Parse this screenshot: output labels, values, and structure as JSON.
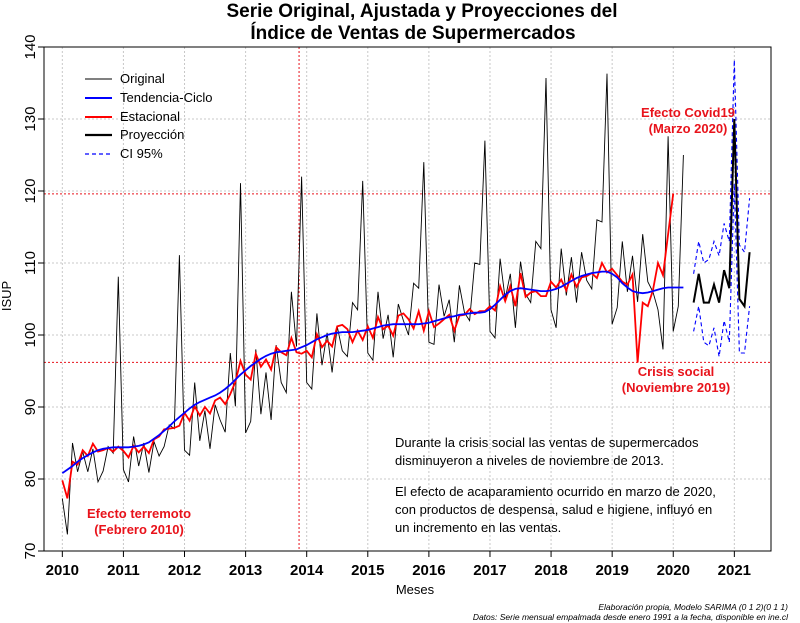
{
  "chart_data": {
    "type": "line",
    "title_line1": "Serie Original, Ajustada y Proyecciones del",
    "title_line2": "Índice de Ventas de Supermercados",
    "xlabel": "Meses",
    "ylabel": "ISUP",
    "xlim": [
      2009.7,
      2021.6
    ],
    "ylim": [
      70,
      140
    ],
    "x_ticks": [
      2010,
      2011,
      2012,
      2013,
      2014,
      2015,
      2016,
      2017,
      2018,
      2019,
      2020,
      2021
    ],
    "y_ticks": [
      70,
      80,
      90,
      100,
      110,
      120,
      130,
      140
    ],
    "grid": true,
    "legend_position": "top-left",
    "legend": [
      {
        "label": "Original",
        "color": "#000000",
        "style": "solid-thin"
      },
      {
        "label": "Tendencia-Ciclo",
        "color": "#0000ff",
        "style": "solid"
      },
      {
        "label": "Estacional",
        "color": "#ff0000",
        "style": "solid"
      },
      {
        "label": "Proyección",
        "color": "#000000",
        "style": "solid-thick"
      },
      {
        "label": "CI 95%",
        "color": "#0000ff",
        "style": "dashed"
      }
    ],
    "reference_lines": {
      "vertical_x": 2013.875,
      "horizontal_y": [
        119.6,
        96.2
      ],
      "color": "#e8131b"
    },
    "series": [
      {
        "name": "Original",
        "color": "#000000",
        "x_start": 2010.0,
        "x_step": 0.08333,
        "values": [
          77.3,
          72.3,
          85.0,
          81.0,
          83.8,
          81.0,
          84.2,
          79.6,
          81.1,
          84.5,
          83.6,
          108.1,
          81.3,
          79.6,
          85.9,
          81.8,
          85.0,
          80.9,
          85.2,
          83.2,
          84.5,
          87.5,
          87.0,
          111.1,
          84.0,
          83.3,
          93.4,
          85.3,
          89.5,
          84.2,
          90.3,
          88.2,
          86.5,
          97.5,
          90.1,
          121.1,
          86.4,
          88.0,
          98.0,
          89.0,
          94.8,
          88.2,
          98.6,
          93.4,
          92.0,
          106.0,
          98.4,
          122.0,
          93.4,
          92.5,
          103.0,
          95.8,
          100.3,
          94.8,
          101.2,
          97.8,
          97.0,
          104.5,
          103.5,
          121.4,
          97.5,
          96.5,
          106.0,
          99.5,
          102.8,
          96.9,
          104.3,
          102.0,
          100.0,
          107.2,
          106.5,
          124.0,
          99.0,
          98.7,
          107.0,
          102.6,
          104.9,
          99.0,
          106.9,
          103.1,
          102.0,
          110.0,
          109.8,
          127.0,
          100.5,
          99.6,
          110.6,
          105.0,
          108.5,
          101.0,
          110.2,
          105.7,
          104.5,
          113.0,
          112.0,
          135.7,
          103.5,
          101.0,
          112.0,
          105.5,
          110.8,
          104.5,
          111.5,
          107.6,
          106.4,
          116.0,
          115.7,
          136.3,
          101.5,
          103.8,
          113.0,
          106.0,
          111.0,
          104.6,
          114.0,
          107.4,
          106.0,
          103.5,
          98.0,
          127.6,
          100.5,
          104.0,
          125.0
        ],
        "trend": [
          80.8,
          81.3,
          81.8,
          82.4,
          82.9,
          83.3,
          83.7,
          84.0,
          84.2,
          84.3,
          84.4,
          84.4,
          84.4,
          84.4,
          84.5,
          84.6,
          84.8,
          85.1,
          85.6,
          86.1,
          86.7,
          87.3,
          88.0,
          88.6,
          89.2,
          89.8,
          90.3,
          90.7,
          91.0,
          91.3,
          91.6,
          92.0,
          92.5,
          93.1,
          93.8,
          94.5,
          95.1,
          95.7,
          96.2,
          96.7,
          97.1,
          97.4,
          97.6,
          97.7,
          97.8,
          97.9,
          98.0,
          98.3,
          98.6,
          99.0,
          99.4,
          99.7,
          100.0,
          100.2,
          100.3,
          100.4,
          100.4,
          100.4,
          100.5,
          100.6,
          100.7,
          100.9,
          101.1,
          101.3,
          101.4,
          101.5,
          101.5,
          101.5,
          101.5,
          101.5,
          101.5,
          101.6,
          101.7,
          101.9,
          102.1,
          102.3,
          102.5,
          102.6,
          102.8,
          102.9,
          103.0,
          103.1,
          103.1,
          103.2,
          103.6,
          104.2,
          104.9,
          105.6,
          106.1,
          106.4,
          106.5,
          106.4,
          106.3,
          106.2,
          106.1,
          106.1,
          106.2,
          106.4,
          106.7,
          107.1,
          107.5,
          107.9,
          108.2,
          108.4,
          108.6,
          108.7,
          108.8,
          108.8,
          108.5,
          108.0,
          107.2,
          106.6,
          106.1,
          105.9,
          105.8,
          105.9,
          106.1,
          106.3,
          106.5,
          106.6,
          106.6,
          106.6,
          106.6
        ],
        "seasonal_adj": [
          79.8,
          77.3,
          82.4,
          82.0,
          84.0,
          83.2,
          84.9,
          83.8,
          84.0,
          84.3,
          83.8,
          84.5,
          83.9,
          83.0,
          84.6,
          83.7,
          84.5,
          83.6,
          85.5,
          85.9,
          86.9,
          87.0,
          87.1,
          87.4,
          89.2,
          88.1,
          90.1,
          88.8,
          90.0,
          89.1,
          90.9,
          91.3,
          90.4,
          91.8,
          93.5,
          96.4,
          94.5,
          93.8,
          97.4,
          95.6,
          96.6,
          95.2,
          98.3,
          97.6,
          97.2,
          99.6,
          97.6,
          97.4,
          97.8,
          96.9,
          100.1,
          98.3,
          99.2,
          98.4,
          101.2,
          101.4,
          100.8,
          99.0,
          100.6,
          99.3,
          101.2,
          99.6,
          102.5,
          100.8,
          101.3,
          99.9,
          102.7,
          103.0,
          102.2,
          100.9,
          103.3,
          100.6,
          103.3,
          101.1,
          101.6,
          102.2,
          102.8,
          100.6,
          102.7,
          102.8,
          103.6,
          102.9,
          103.3,
          103.3,
          104.0,
          103.4,
          106.8,
          104.7,
          106.8,
          104.0,
          108.6,
          105.3,
          105.9,
          106.1,
          105.4,
          105.4,
          107.4,
          106.6,
          107.7,
          106.2,
          108.4,
          106.7,
          108.0,
          108.2,
          108.6,
          107.9,
          110.0,
          108.7,
          109.2,
          108.3,
          107.4,
          107.0,
          108.4,
          96.2,
          104.5,
          104.0,
          106.2,
          110.0,
          108.3,
          114.0,
          119.6
        ]
      },
      {
        "name": "Proyección",
        "color": "#000000",
        "x": [
          2020.333,
          2020.417,
          2020.5,
          2020.583,
          2020.667,
          2020.75,
          2020.833,
          2020.917,
          2021.0,
          2021.083,
          2021.167,
          2021.25
        ],
        "values": [
          104.5,
          108.5,
          104.5,
          104.5,
          107.0,
          104.5,
          109.0,
          106.5,
          130.0,
          105.0,
          104.0,
          111.5
        ],
        "ci_upper": [
          108.5,
          113.0,
          110.0,
          110.5,
          113.0,
          111.0,
          115.5,
          113.0,
          138.2,
          112.5,
          111.5,
          119.0
        ],
        "ci_lower": [
          100.5,
          104.0,
          99.0,
          98.5,
          101.0,
          97.0,
          102.0,
          99.0,
          121.0,
          97.5,
          97.5,
          104.0
        ]
      }
    ],
    "annotations": [
      {
        "text_line1": "Efecto Covid19",
        "text_line2": "(Marzo 2020)"
      },
      {
        "text_line1": "Crisis social",
        "text_line2": "(Noviembre 2019)"
      },
      {
        "text_line1": "Efecto terremoto",
        "text_line2": "(Febrero 2010)"
      },
      {
        "text_line1": "Durante la crisis social las ventas de supermercados",
        "text_line2": "disminuyeron a niveles de noviembre de 2013."
      },
      {
        "text_line1": "El efecto de acaparamiento ocurrido en marzo de 2020,",
        "text_line2": "con productos de despensa, salud e higiene, influyó en",
        "text_line3": "un incremento en las ventas."
      }
    ],
    "footnote_line1": "Elaboración propia, Modelo SARIMA (0 1 2)(0 1 1)",
    "footnote_line2": "Datos: Serie mensual empalmada desde enero 1991 a la fecha, disponible en ine.cl"
  }
}
